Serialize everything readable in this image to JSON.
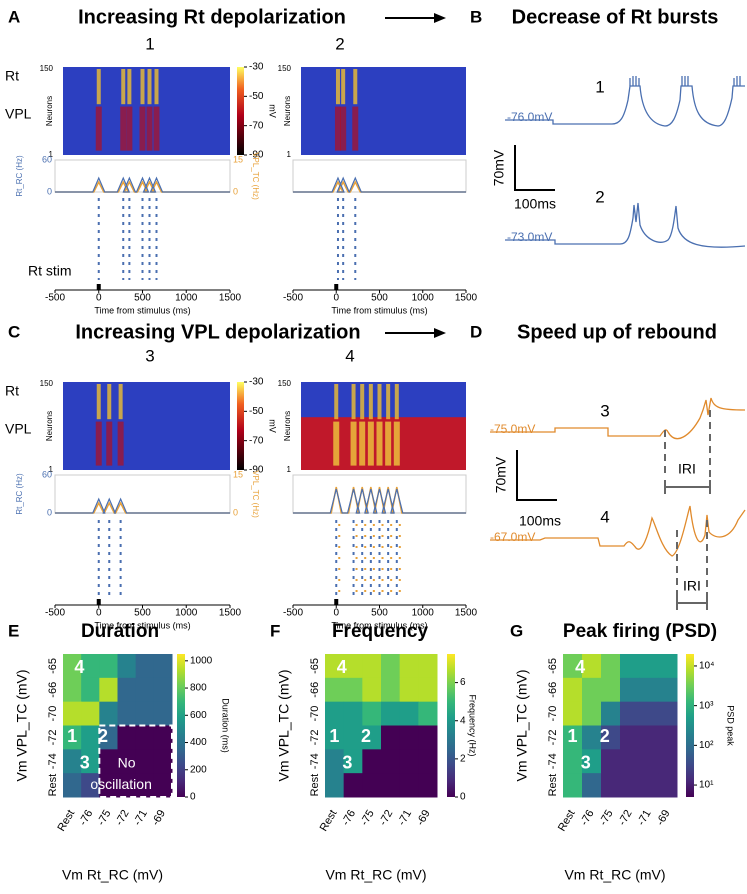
{
  "figure": {
    "A": {
      "letter": "A",
      "title": "Increasing Rt depolarization"
    },
    "B": {
      "letter": "B",
      "title": "Decrease of Rt bursts",
      "traces": [
        {
          "number": "1",
          "baseline": "-76.0mV"
        },
        {
          "number": "2",
          "baseline": "-73.0mV"
        }
      ],
      "scale_v": "70mV",
      "scale_t": "100ms"
    },
    "C": {
      "letter": "C",
      "title": "Increasing VPL depolarization"
    },
    "D": {
      "letter": "D",
      "title": "Speed up of rebound",
      "traces": [
        {
          "number": "3",
          "baseline": "-75.0mV",
          "interval": "IRI"
        },
        {
          "number": "4",
          "baseline": "-67.0mV",
          "interval": "IRI"
        }
      ],
      "scale_v": "70mV",
      "scale_t": "100ms"
    },
    "simulations": [
      {
        "number": "1",
        "groups": [
          "Rt",
          "VPL"
        ],
        "neuron_label": "Neurons",
        "neuron_ticks": [
          1,
          150
        ],
        "cbar_ticks": [
          -30,
          -50,
          -70,
          -90
        ],
        "cbar_label": "mV",
        "rate_left_label": "Rt_RC (Hz)",
        "rate_left_ticks": [
          0,
          60
        ],
        "rate_right_label": "VPL_TC (Hz)",
        "rate_right_ticks": [
          0,
          15
        ],
        "stim": "Rt stim",
        "xlim": [
          -500,
          1500
        ],
        "xticks": [
          -500,
          0,
          500,
          1000,
          1500
        ],
        "xlabel": "Time from stimulus (ms)"
      },
      {
        "number": "2",
        "neuron_label": "Neurons",
        "neuron_ticks": [
          1,
          150
        ],
        "xlim": [
          -500,
          1500
        ],
        "xticks": [
          -500,
          0,
          500,
          1000,
          1500
        ],
        "xlabel": "Time from stimulus (ms)"
      },
      {
        "number": "3",
        "groups": [
          "Rt",
          "VPL"
        ],
        "neuron_label": "Neurons",
        "neuron_ticks": [
          1,
          150
        ],
        "cbar_ticks": [
          -30,
          -50,
          -70,
          -90
        ],
        "cbar_label": "mV",
        "rate_left_label": "Rt_RC (Hz)",
        "rate_left_ticks": [
          0,
          60
        ],
        "rate_right_label": "VPL_TC (Hz)",
        "rate_right_ticks": [
          0,
          15
        ],
        "xlim": [
          -500,
          1500
        ],
        "xticks": [
          -500,
          0,
          500,
          1000,
          1500
        ],
        "xlabel": "Time from stimulus (ms)"
      },
      {
        "number": "4",
        "neuron_label": "Neurons",
        "neuron_ticks": [
          1,
          150
        ],
        "xlim": [
          -500,
          1500
        ],
        "xticks": [
          -500,
          0,
          500,
          1000,
          1500
        ],
        "xlabel": "Time from stimulus (ms)"
      }
    ]
  },
  "chart_data": [
    {
      "type": "heatmap",
      "letter": "E",
      "title": "Duration",
      "xlabel": "Vm Rt_RC (mV)",
      "ylabel": "Vm VPL_TC (mV)",
      "columns": [
        "Rest",
        "-76",
        "-75",
        "-72",
        "-71",
        "-69"
      ],
      "rows": [
        "-65",
        "-66",
        "-70",
        "-72",
        "-74",
        "Rest"
      ],
      "values": [
        [
          800,
          750,
          750,
          500,
          350,
          300
        ],
        [
          850,
          750,
          950,
          350,
          300,
          300
        ],
        [
          950,
          900,
          500,
          400,
          300,
          300
        ],
        [
          700,
          600,
          300,
          0,
          0,
          0
        ],
        [
          500,
          550,
          0,
          0,
          0,
          0
        ],
        [
          350,
          250,
          0,
          0,
          0,
          0
        ]
      ],
      "colormap": "viridis",
      "clim": [
        0,
        1050
      ],
      "cticks": [
        0,
        200,
        400,
        600,
        800,
        1000
      ],
      "clabel": "Duration (ms)",
      "annotations": [
        "4",
        "1",
        "2",
        "3"
      ],
      "region_label": [
        "No",
        "oscillation"
      ]
    },
    {
      "type": "heatmap",
      "letter": "F",
      "title": "Frequency",
      "xlabel": "Vm Rt_RC (mV)",
      "ylabel": "Vm VPL_TC (mV)",
      "columns": [
        "Rest",
        "-76",
        "-75",
        "-72",
        "-71",
        "-69"
      ],
      "rows": [
        "-65",
        "-66",
        "-70",
        "-72",
        "-74",
        "Rest"
      ],
      "values": [
        [
          6.5,
          6.5,
          6.5,
          6,
          7,
          6.5
        ],
        [
          6,
          6,
          6.5,
          6,
          6.5,
          7
        ],
        [
          4.5,
          4.5,
          5,
          4.5,
          4.5,
          5
        ],
        [
          4,
          4,
          4,
          0,
          0,
          0
        ],
        [
          3.5,
          4,
          0,
          0,
          0,
          0
        ],
        [
          3.5,
          0,
          0,
          0,
          0,
          0
        ]
      ],
      "colormap": "viridis",
      "clim": [
        0,
        7.5
      ],
      "cticks": [
        0,
        2,
        4,
        6
      ],
      "clabel": "Frequency (Hz)",
      "annotations": [
        "4",
        "1",
        "2",
        "3"
      ]
    },
    {
      "type": "heatmap",
      "letter": "G",
      "title": "Peak firing (PSD)",
      "xlabel": "Vm Rt_RC (mV)",
      "ylabel": "Vm VPL_TC (mV)",
      "columns": [
        "Rest",
        "-76",
        "-75",
        "-72",
        "-71",
        "-69"
      ],
      "rows": [
        "-65",
        "-66",
        "-70",
        "-72",
        "-74",
        "Rest"
      ],
      "values": [
        [
          5000,
          8000,
          3000,
          600,
          400,
          400
        ],
        [
          8000,
          5000,
          5000,
          300,
          300,
          300
        ],
        [
          8000,
          3000,
          150,
          30,
          30,
          30
        ],
        [
          1000,
          300,
          20,
          8,
          8,
          8
        ],
        [
          1000,
          600,
          10,
          8,
          8,
          8
        ],
        [
          1000,
          100,
          8,
          8,
          8,
          8
        ]
      ],
      "colormap": "viridis",
      "log_scale": true,
      "clim": [
        5,
        20000
      ],
      "cticks": [
        {
          "value": 10,
          "label": "10¹"
        },
        {
          "value": 100,
          "label": "10²"
        },
        {
          "value": 1000,
          "label": "10³"
        },
        {
          "value": 10000,
          "label": "10⁴"
        }
      ],
      "clabel": "PSD peak",
      "annotations": [
        "4",
        "1",
        "2",
        "3"
      ]
    }
  ]
}
